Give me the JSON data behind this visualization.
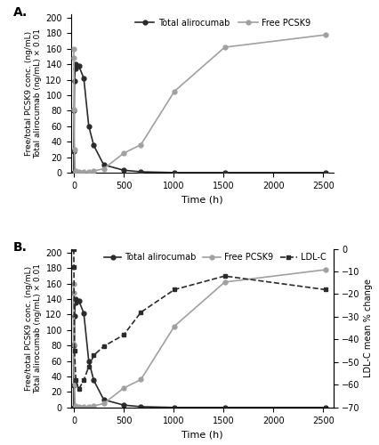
{
  "panel_A": {
    "alirocumab_x": [
      0,
      1,
      4,
      7,
      14,
      21,
      50,
      100,
      150,
      200,
      300,
      500,
      672,
      1008,
      1512,
      2520
    ],
    "alirocumab_y": [
      0,
      28,
      80,
      118,
      135,
      140,
      138,
      122,
      60,
      35,
      10,
      3,
      1,
      0,
      0,
      0
    ],
    "pcsk9_x": [
      0,
      1,
      4,
      7,
      14,
      21,
      50,
      100,
      150,
      200,
      300,
      500,
      672,
      1008,
      1512,
      2520
    ],
    "pcsk9_y": [
      160,
      148,
      82,
      30,
      2,
      1,
      1,
      1,
      1,
      2,
      5,
      25,
      36,
      105,
      162,
      178
    ],
    "alirocumab_color": "#2b2b2b",
    "pcsk9_color": "#a0a0a0",
    "ylabel": "Free/total PCSK9 conc. (ng/mL)\nTotal alirocumab (ng/mL) × 0.01",
    "xlabel": "Time (h)",
    "ylim": [
      0,
      205
    ],
    "xlim": [
      -30,
      2600
    ],
    "yticks": [
      0,
      20,
      40,
      60,
      80,
      100,
      120,
      140,
      160,
      180,
      200
    ],
    "xticks": [
      0,
      500,
      1000,
      1500,
      2000,
      2500
    ],
    "label_A": "A."
  },
  "panel_B": {
    "alirocumab_x": [
      0,
      1,
      4,
      7,
      14,
      21,
      50,
      100,
      150,
      200,
      300,
      500,
      672,
      1008,
      1512,
      2520
    ],
    "alirocumab_y": [
      0,
      28,
      80,
      118,
      135,
      140,
      138,
      122,
      60,
      35,
      10,
      3,
      1,
      0,
      0,
      0
    ],
    "pcsk9_x": [
      0,
      1,
      4,
      7,
      14,
      21,
      50,
      100,
      150,
      200,
      300,
      500,
      672,
      1008,
      1512,
      2520
    ],
    "pcsk9_y": [
      160,
      148,
      82,
      30,
      2,
      1,
      1,
      1,
      1,
      2,
      5,
      25,
      36,
      105,
      162,
      178
    ],
    "ldlc_x": [
      0,
      1,
      7,
      21,
      50,
      100,
      150,
      200,
      300,
      500,
      672,
      1008,
      1512,
      2520
    ],
    "ldlc_y": [
      0,
      -8,
      -45,
      -58,
      -62,
      -58,
      -52,
      -47,
      -43,
      -38,
      -28,
      -18,
      -12,
      -18
    ],
    "alirocumab_color": "#2b2b2b",
    "pcsk9_color": "#a0a0a0",
    "ldlc_color": "#2b2b2b",
    "ylabel_left": "Free/total PCSK9 conc. (ng/mL)\nTotal alirocumab (ng/mL) × 0.01",
    "ylabel_right": "LDL-C mean % change",
    "xlabel": "Time (h)",
    "ylim_left": [
      0,
      205
    ],
    "xlim": [
      -30,
      2600
    ],
    "yticks_left": [
      0,
      20,
      40,
      60,
      80,
      100,
      120,
      140,
      160,
      180,
      200
    ],
    "xticks": [
      0,
      500,
      1000,
      1500,
      2000,
      2500
    ],
    "ylim_right": [
      -70,
      0
    ],
    "yticks_right": [
      -70,
      -60,
      -50,
      -40,
      -30,
      -20,
      -10,
      0
    ],
    "label_B": "B."
  },
  "figure": {
    "bg_color": "#ffffff",
    "figsize": [
      4.26,
      5.0
    ],
    "dpi": 100
  }
}
